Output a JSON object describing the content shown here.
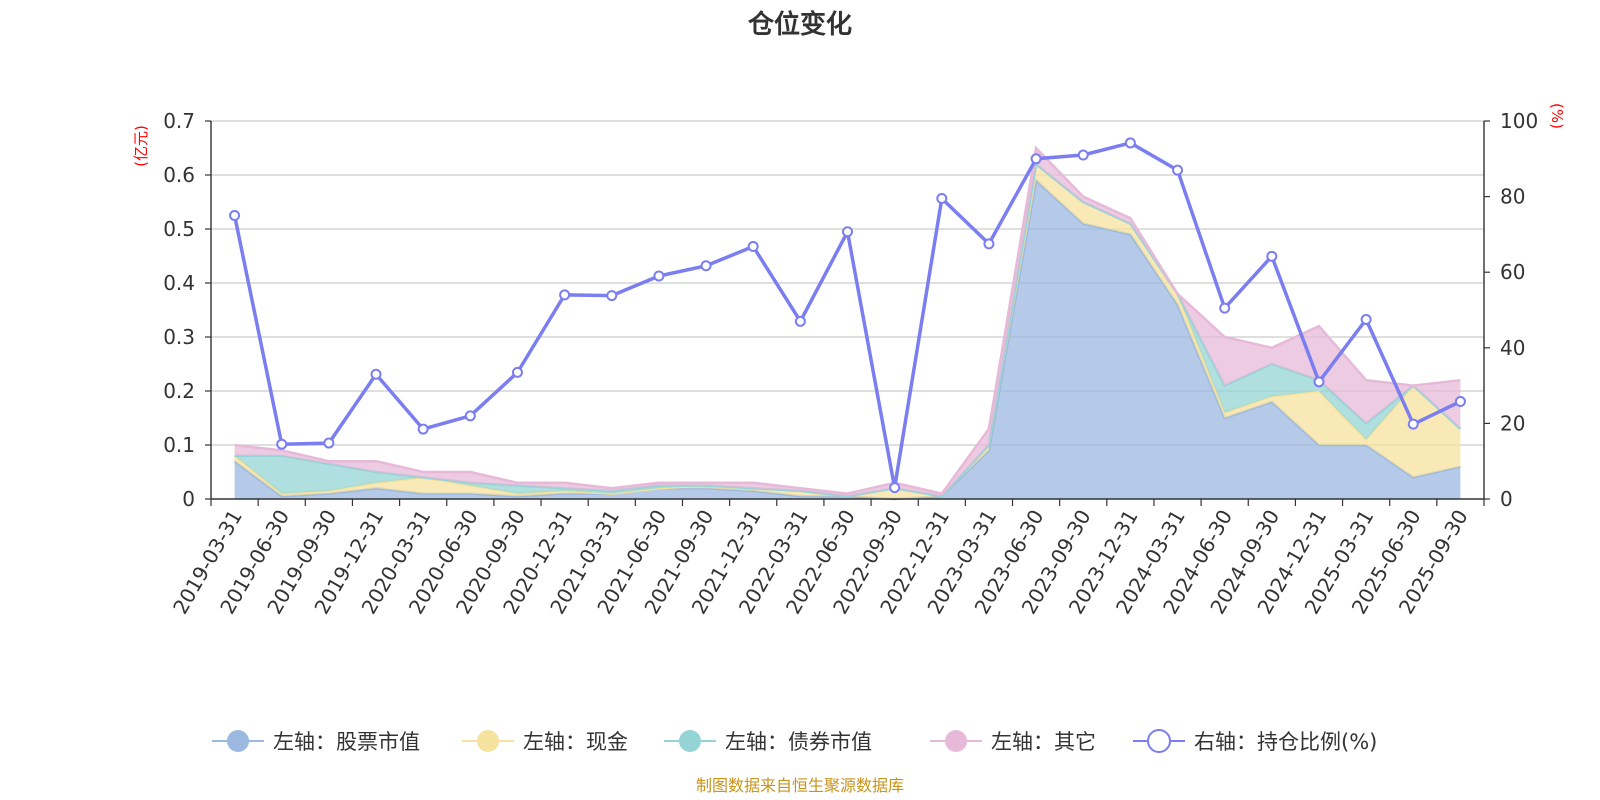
{
  "chart_data": {
    "type": "area",
    "title": "仓位变化",
    "source_note": "制图数据来自恒生聚源数据库",
    "x": [
      "2019-03-31",
      "2019-06-30",
      "2019-09-30",
      "2019-12-31",
      "2020-03-31",
      "2020-06-30",
      "2020-09-30",
      "2020-12-31",
      "2021-03-31",
      "2021-06-30",
      "2021-09-30",
      "2021-12-31",
      "2022-03-31",
      "2022-06-30",
      "2022-09-30",
      "2022-12-31",
      "2023-03-31",
      "2023-06-30",
      "2023-09-30",
      "2023-12-31",
      "2024-03-31",
      "2024-06-30",
      "2024-09-30",
      "2024-12-31",
      "2025-03-31",
      "2025-06-30",
      "2025-09-30"
    ],
    "y_left": {
      "unit": "(亿元)",
      "min": 0,
      "max": 0.7,
      "ticks": [
        "0",
        "0.1",
        "0.2",
        "0.3",
        "0.4",
        "0.5",
        "0.6",
        "0.7"
      ]
    },
    "y_right": {
      "unit": "(%)",
      "min": 0,
      "max": 100,
      "ticks": [
        "0",
        "20",
        "40",
        "60",
        "80",
        "100"
      ]
    },
    "grid": true,
    "legend_position": "bottom",
    "series": [
      {
        "name": "左轴：股票市值",
        "axis": "left",
        "kind": "stacked-area",
        "color": "#9bb8e0",
        "values": [
          0.07,
          0.005,
          0.01,
          0.02,
          0.01,
          0.01,
          0.005,
          0.01,
          0.01,
          0.02,
          0.02,
          0.015,
          0.005,
          0.005,
          0.0,
          0.005,
          0.09,
          0.59,
          0.51,
          0.49,
          0.36,
          0.15,
          0.18,
          0.1,
          0.1,
          0.04,
          0.06
        ]
      },
      {
        "name": "左轴：现金",
        "axis": "left",
        "kind": "stacked-area",
        "color": "#f5e29e",
        "values": [
          0.01,
          0.005,
          0.005,
          0.01,
          0.03,
          0.015,
          0.005,
          0.005,
          0.0,
          0.0,
          0.005,
          0.005,
          0.01,
          0.0,
          0.02,
          0.0,
          0.01,
          0.03,
          0.04,
          0.02,
          0.02,
          0.01,
          0.01,
          0.1,
          0.01,
          0.17,
          0.07
        ]
      },
      {
        "name": "左轴：债券市值",
        "axis": "left",
        "kind": "stacked-area",
        "color": "#95d4d6",
        "values": [
          0.0,
          0.07,
          0.05,
          0.02,
          0.0,
          0.005,
          0.015,
          0.005,
          0.005,
          0.005,
          0.0,
          0.0,
          0.0,
          0.0,
          0.0,
          0.0,
          0.0,
          0.0,
          0.0,
          0.0,
          0.0,
          0.05,
          0.06,
          0.02,
          0.03,
          0.0,
          0.0
        ]
      },
      {
        "name": "左轴：其它",
        "axis": "left",
        "kind": "stacked-area",
        "color": "#e7b9d9",
        "values": [
          0.02,
          0.01,
          0.005,
          0.02,
          0.01,
          0.02,
          0.005,
          0.01,
          0.005,
          0.005,
          0.005,
          0.01,
          0.005,
          0.005,
          0.01,
          0.005,
          0.03,
          0.03,
          0.01,
          0.01,
          0.0,
          0.09,
          0.03,
          0.1,
          0.08,
          0.0,
          0.09
        ]
      },
      {
        "name": "右轴：持仓比例(%)",
        "axis": "right",
        "kind": "line",
        "color": "#7b7ef0",
        "values": [
          75,
          14.5,
          14.8,
          33,
          18.5,
          22,
          33.5,
          54,
          53.8,
          59,
          61.7,
          66.8,
          47,
          70.7,
          3,
          79.5,
          67.5,
          90,
          91,
          94.2,
          87,
          50.5,
          64.2,
          31,
          47.5,
          19.8,
          25.8
        ]
      }
    ]
  }
}
